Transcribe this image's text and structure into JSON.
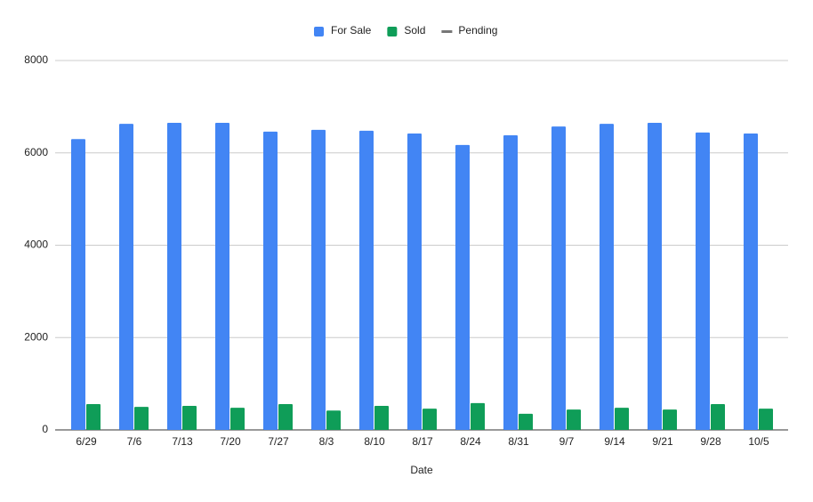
{
  "chart_data": {
    "type": "bar",
    "x_label": "Date",
    "categories": [
      "6/29",
      "7/6",
      "7/13",
      "7/20",
      "7/27",
      "8/3",
      "8/10",
      "8/17",
      "8/24",
      "8/31",
      "9/7",
      "9/14",
      "9/21",
      "9/28",
      "10/5"
    ],
    "series": [
      {
        "name": "For Sale",
        "color": "#4285f4",
        "values": [
          6300,
          6630,
          6650,
          6650,
          6460,
          6500,
          6480,
          6420,
          6170,
          6380,
          6570,
          6630,
          6650,
          6440,
          6420
        ]
      },
      {
        "name": "Sold",
        "color": "#0f9d58",
        "values": [
          560,
          500,
          520,
          480,
          560,
          420,
          520,
          460,
          580,
          350,
          440,
          480,
          440,
          560,
          460
        ]
      },
      {
        "name": "Pending",
        "color": "#777777",
        "type": "line",
        "values": [
          null,
          null,
          null,
          null,
          null,
          null,
          null,
          null,
          null,
          null,
          null,
          null,
          null,
          null,
          null
        ]
      }
    ],
    "ylim": [
      0,
      8000
    ],
    "yticks": [
      0,
      2000,
      4000,
      6000,
      8000
    ],
    "grid": true,
    "legend": "top"
  }
}
